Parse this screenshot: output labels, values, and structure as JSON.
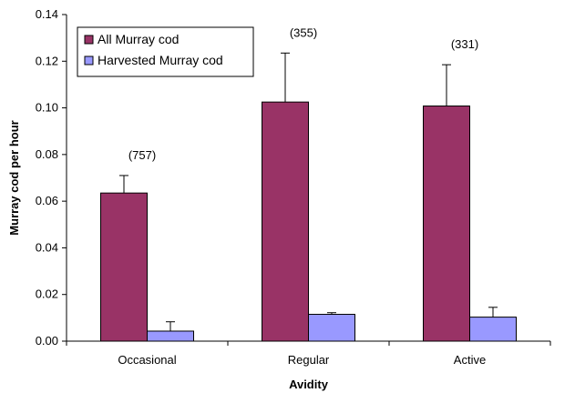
{
  "chart_data": {
    "type": "bar",
    "categories": [
      "Occasional",
      "Regular",
      "Active"
    ],
    "series": [
      {
        "name": "All Murray cod",
        "color": "#993366",
        "values": [
          0.0635,
          0.1025,
          0.1008
        ],
        "error_upper": [
          0.071,
          0.1235,
          0.1185
        ]
      },
      {
        "name": "Harvested Murray cod",
        "color": "#9999ff",
        "values": [
          0.0043,
          0.0115,
          0.0103
        ],
        "error_upper": [
          0.0083,
          0.0122,
          0.0145
        ]
      }
    ],
    "annotations": [
      "(757)",
      "(355)",
      "(331)"
    ],
    "xlabel": "Avidity",
    "ylabel": "Murray cod per hour",
    "ylim": [
      0,
      0.14
    ],
    "yticks": [
      "0.00",
      "0.02",
      "0.04",
      "0.06",
      "0.08",
      "0.10",
      "0.12",
      "0.14"
    ],
    "grid": false,
    "legend_position": "top-left"
  }
}
